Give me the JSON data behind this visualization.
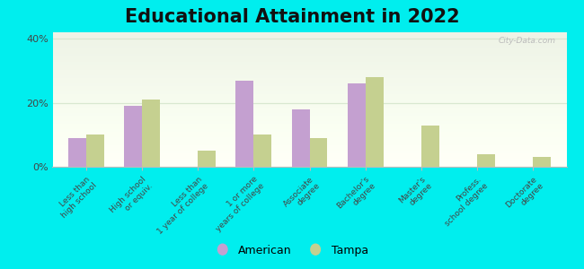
{
  "title": "Educational Attainment in 2022",
  "categories": [
    "Less than\nhigh school",
    "High school\nor equiv.",
    "Less than\n1 year of college",
    "1 or more\nyears of college",
    "Associate\ndegree",
    "Bachelor's\ndegree",
    "Master's\ndegree",
    "Profess.\nschool degree",
    "Doctorate\ndegree"
  ],
  "american": [
    9,
    19,
    0,
    27,
    18,
    26,
    0,
    0,
    0
  ],
  "tampa": [
    10,
    21,
    5,
    10,
    9,
    28,
    13,
    4,
    3
  ],
  "american_color": "#c4a0d0",
  "tampa_color": "#c5d090",
  "bg_color": "#00eeee",
  "plot_bg": "#eef5e8",
  "legend_american": "American",
  "legend_tampa": "Tampa",
  "ylim": [
    0,
    42
  ],
  "yticks": [
    0,
    20,
    40
  ],
  "ytick_labels": [
    "0%",
    "20%",
    "40%"
  ],
  "watermark": "City-Data.com",
  "title_fontsize": 15,
  "bar_width": 0.32,
  "grid_color": "#d8e8d0",
  "spine_color": "#bbbbbb"
}
